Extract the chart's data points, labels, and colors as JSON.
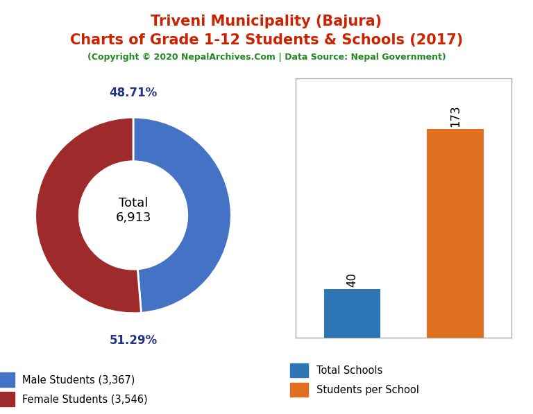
{
  "title_line1": "Triveni Municipality (Bajura)",
  "title_line2": "Charts of Grade 1-12 Students & Schools (2017)",
  "subtitle": "(Copyright © 2020 NepalArchives.Com | Data Source: Nepal Government)",
  "title_color": "#cc2200",
  "subtitle_color": "#228822",
  "male_students": 3367,
  "female_students": 3546,
  "total_students": 6913,
  "male_pct": "48.71%",
  "female_pct": "51.29%",
  "male_color": "#4472c4",
  "female_color": "#9e2a2b",
  "pct_label_color": "#1f3484",
  "total_schools": 40,
  "students_per_school": 173,
  "bar_blue": "#2e75b6",
  "bar_orange": "#e07020",
  "donut_center_text": "Total\n6,913",
  "donut_width": 0.45,
  "legend_male": "Male Students (3,367)",
  "legend_female": "Female Students (3,546)",
  "legend_schools": "Total Schools",
  "legend_sps": "Students per School",
  "background_color": "#ffffff"
}
